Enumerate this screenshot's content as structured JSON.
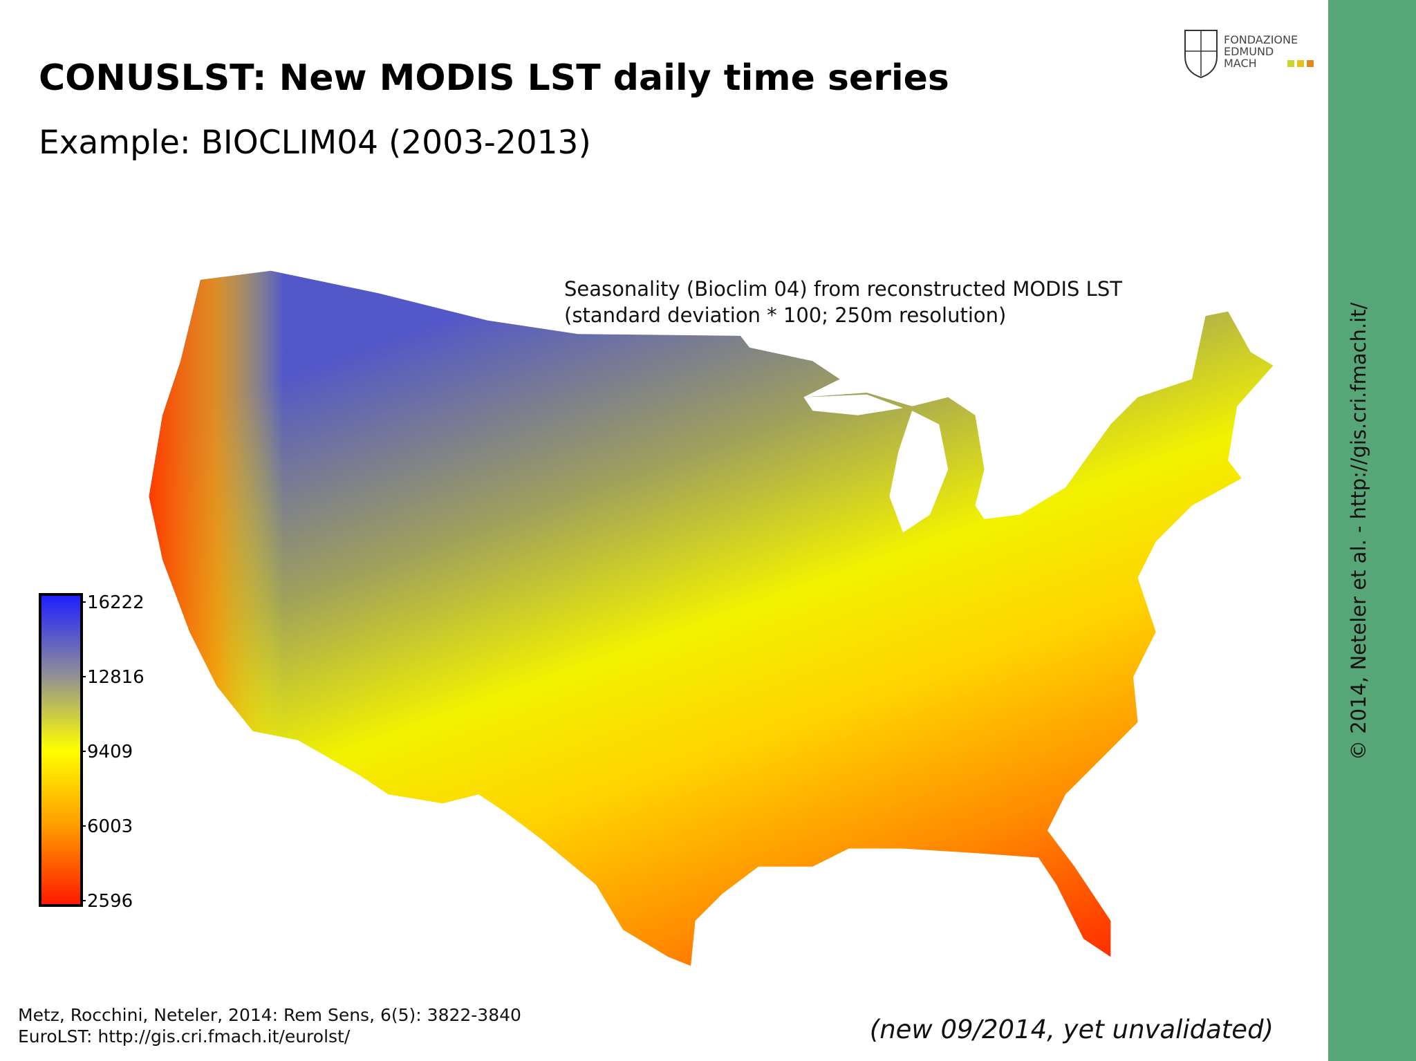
{
  "header": {
    "title": "CONUSLST: New MODIS LST daily time series",
    "subtitle": "Example: BIOCLIM04 (2003-2013)"
  },
  "logo": {
    "lines": [
      "FONDAZIONE",
      "EDMUND",
      "MACH"
    ]
  },
  "map": {
    "annotation": [
      "Seasonality (Bioclim 04) from reconstructed MODIS LST",
      "(standard deviation * 100; 250m resolution)"
    ],
    "legend": {
      "ticks": [
        16222,
        12816,
        9409,
        6003,
        2596
      ]
    }
  },
  "footer": {
    "references": [
      "Metz, Rocchini, Neteler, 2014: Rem Sens, 6(5): 3822-3840",
      "EuroLST: http://gis.cri.fmach.it/eurolst/"
    ],
    "note": "(new 09/2014, yet unvalidated)"
  },
  "sidebar": {
    "text": "© 2014, Neteler et al. - http://gis.cri.fmach.it/"
  }
}
